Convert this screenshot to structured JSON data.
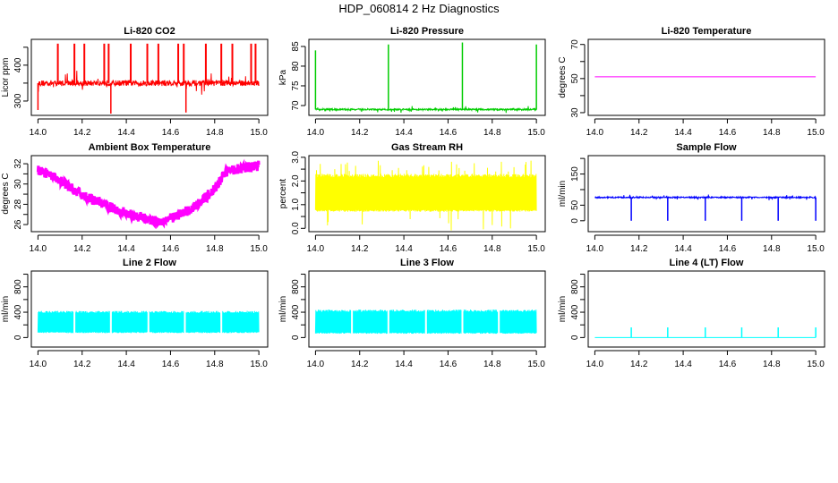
{
  "title": "HDP_060814  2 Hz Diagnostics",
  "chart_data": [
    {
      "type": "line",
      "title": "Li-820 CO2",
      "ylabel": "Licor ppm",
      "color": "#ff0000",
      "xlim": [
        13.97,
        15.04
      ],
      "ylim": [
        260,
        472
      ],
      "xticks": [
        "14.0",
        "14.2",
        "14.4",
        "14.6",
        "14.8",
        "15.0"
      ],
      "yticks": [
        300,
        350,
        400,
        450
      ],
      "yticklabels": [
        "300",
        "",
        "400",
        ""
      ],
      "baseline": 350,
      "noise": 8,
      "up_spikes": {
        "x": [
          14.09,
          14.165,
          14.21,
          14.3,
          14.32,
          14.42,
          14.495,
          14.545,
          14.635,
          14.66,
          14.76,
          14.83,
          14.88,
          14.965,
          14.985
        ],
        "y": [
          460,
          460,
          460,
          460,
          460,
          460,
          460,
          460,
          460,
          460,
          460,
          460,
          460,
          460,
          460
        ]
      },
      "down_spikes": {
        "x": [
          14.0,
          14.33,
          14.67
        ],
        "y": [
          275,
          265,
          268
        ]
      }
    },
    {
      "type": "line",
      "title": "Li-820 Pressure",
      "ylabel": "kPa",
      "color": "#00cc00",
      "xlim": [
        13.97,
        15.04
      ],
      "ylim": [
        67.5,
        86.8
      ],
      "xticks": [
        "14.0",
        "14.2",
        "14.4",
        "14.6",
        "14.8",
        "15.0"
      ],
      "yticks": [
        70,
        75,
        80,
        85
      ],
      "yticklabels": [
        "70",
        "75",
        "80",
        "85"
      ],
      "baseline": 69,
      "noise": 0.2,
      "up_spikes": {
        "x": [
          14.0,
          14.33,
          14.665,
          15.0
        ],
        "y": [
          84,
          85.5,
          86,
          85.5
        ]
      }
    },
    {
      "type": "line",
      "title": "Li-820 Temperature",
      "ylabel": "degrees C",
      "color": "#ff00ff",
      "xlim": [
        13.97,
        15.04
      ],
      "ylim": [
        28.4,
        73
      ],
      "xticks": [
        "14.0",
        "14.2",
        "14.4",
        "14.6",
        "14.8",
        "15.0"
      ],
      "yticks": [
        30,
        40,
        50,
        60,
        70
      ],
      "yticklabels": [
        "30",
        "",
        "50",
        "",
        "70"
      ],
      "baseline": 51,
      "noise": 0
    },
    {
      "type": "line",
      "title": "Ambient Box Temperature",
      "ylabel": "degrees C",
      "color": "#ff00ff",
      "xlim": [
        13.97,
        15.04
      ],
      "ylim": [
        25.3,
        32.8
      ],
      "xticks": [
        "14.0",
        "14.2",
        "14.4",
        "14.6",
        "14.8",
        "15.0"
      ],
      "yticks": [
        26,
        27,
        28,
        29,
        30,
        31,
        32
      ],
      "yticklabels": [
        "26",
        "",
        "28",
        "",
        "30",
        "",
        "32"
      ],
      "trend": {
        "x": [
          14.0,
          14.1,
          14.2,
          14.3,
          14.4,
          14.5,
          14.55,
          14.6,
          14.7,
          14.8,
          14.85,
          14.9,
          15.0
        ],
        "y": [
          31.5,
          30.3,
          28.9,
          28.0,
          27.1,
          26.5,
          26.3,
          26.6,
          27.6,
          29.5,
          31.2,
          31.5,
          31.8
        ]
      },
      "noise": 0.5
    },
    {
      "type": "line",
      "title": "Gas Stream RH",
      "ylabel": "percent",
      "color": "#ffff00",
      "xlim": [
        13.97,
        15.04
      ],
      "ylim": [
        -0.14,
        3.07
      ],
      "xticks": [
        "14.0",
        "14.2",
        "14.4",
        "14.6",
        "14.8",
        "15.0"
      ],
      "yticks": [
        0,
        0.5,
        1,
        1.5,
        2,
        2.5,
        3
      ],
      "yticklabels": [
        "0.0",
        "",
        "1.0",
        "",
        "2.0",
        "",
        "3.0"
      ],
      "band": [
        0.7,
        2.3
      ],
      "extremes": [
        -0.1,
        2.9
      ]
    },
    {
      "type": "line",
      "title": "Sample Flow",
      "ylabel": "ml/min",
      "color": "#0000ff",
      "xlim": [
        13.97,
        15.04
      ],
      "ylim": [
        -35,
        209
      ],
      "xticks": [
        "14.0",
        "14.2",
        "14.4",
        "14.6",
        "14.8",
        "15.0"
      ],
      "yticks": [
        0,
        50,
        100,
        150,
        200
      ],
      "yticklabels": [
        "0",
        "50",
        "",
        "150",
        ""
      ],
      "baseline": 75,
      "noise": 2,
      "down_spikes": {
        "x": [
          14.165,
          14.33,
          14.5,
          14.665,
          14.83,
          15.0
        ],
        "y": [
          0,
          0,
          0,
          0,
          0,
          0
        ]
      }
    },
    {
      "type": "line",
      "title": "Line 2 Flow",
      "ylabel": "ml/min",
      "color": "#00ffff",
      "xlim": [
        13.97,
        15.04
      ],
      "ylim": [
        -150,
        1050
      ],
      "xticks": [
        "14.0",
        "14.2",
        "14.4",
        "14.6",
        "14.8",
        "15.0"
      ],
      "yticks": [
        0,
        200,
        400,
        600,
        800,
        1000
      ],
      "yticklabels": [
        "0",
        "",
        "400",
        "",
        "800",
        ""
      ],
      "band": [
        70,
        420
      ],
      "gaps": [
        14.165,
        14.33,
        14.5,
        14.665,
        14.83
      ]
    },
    {
      "type": "line",
      "title": "Line 3 Flow",
      "ylabel": "ml/min",
      "color": "#00ffff",
      "xlim": [
        13.97,
        15.04
      ],
      "ylim": [
        -150,
        1050
      ],
      "xticks": [
        "14.0",
        "14.2",
        "14.4",
        "14.6",
        "14.8",
        "15.0"
      ],
      "yticks": [
        0,
        200,
        400,
        600,
        800,
        1000
      ],
      "yticklabels": [
        "0",
        "",
        "400",
        "",
        "800",
        ""
      ],
      "band": [
        60,
        440
      ],
      "gaps": [
        14.165,
        14.33,
        14.5,
        14.665,
        14.83
      ]
    },
    {
      "type": "line",
      "title": "Line 4 (LT) Flow",
      "ylabel": "ml/min",
      "color": "#00ffff",
      "xlim": [
        13.97,
        15.04
      ],
      "ylim": [
        -150,
        1050
      ],
      "xticks": [
        "14.0",
        "14.2",
        "14.4",
        "14.6",
        "14.8",
        "15.0"
      ],
      "yticks": [
        0,
        200,
        400,
        600,
        800,
        1000
      ],
      "yticklabels": [
        "0",
        "",
        "400",
        "",
        "800",
        ""
      ],
      "baseline": 0,
      "noise": 0,
      "up_spikes": {
        "x": [
          14.165,
          14.33,
          14.5,
          14.665,
          14.83,
          15.0
        ],
        "y": [
          160,
          160,
          160,
          160,
          160,
          160
        ]
      }
    }
  ]
}
